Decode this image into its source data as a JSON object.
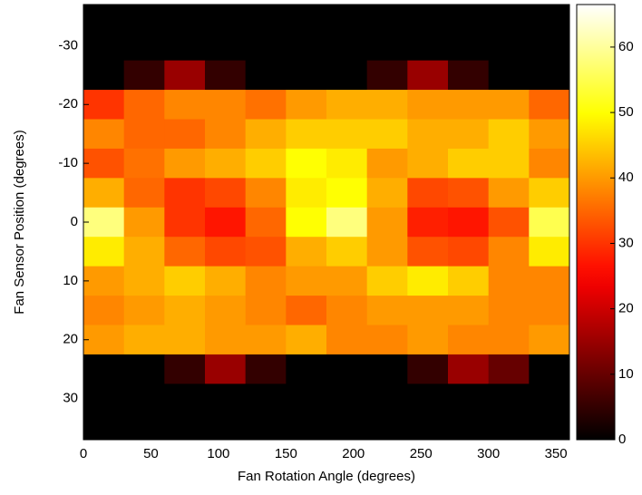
{
  "chart_data": {
    "type": "heatmap",
    "x_label": "Fan Rotation Angle (degrees)",
    "y_label": "Fan Sensor Position (degrees)",
    "x": [
      15,
      45,
      75,
      105,
      135,
      165,
      195,
      225,
      255,
      285,
      315,
      345
    ],
    "y": [
      -35,
      -30,
      -25,
      -20,
      -15,
      -10,
      -5,
      0,
      5,
      10,
      15,
      20,
      25,
      30,
      35
    ],
    "z": [
      [
        0,
        0,
        0,
        0,
        0,
        0,
        0,
        0,
        0,
        0,
        0,
        0
      ],
      [
        0,
        0,
        0,
        0,
        0,
        0,
        0,
        0,
        0,
        0,
        0,
        0
      ],
      [
        0,
        5,
        15,
        5,
        0,
        0,
        0,
        5,
        15,
        5,
        0,
        0
      ],
      [
        30,
        35,
        38,
        38,
        36,
        40,
        42,
        42,
        40,
        40,
        40,
        35
      ],
      [
        38,
        35,
        35,
        38,
        42,
        45,
        45,
        45,
        42,
        42,
        45,
        40
      ],
      [
        33,
        36,
        40,
        42,
        45,
        50,
        48,
        40,
        42,
        45,
        45,
        38
      ],
      [
        42,
        35,
        30,
        32,
        38,
        48,
        50,
        42,
        32,
        33,
        40,
        45
      ],
      [
        58,
        40,
        30,
        27,
        35,
        50,
        58,
        40,
        28,
        27,
        33,
        55
      ],
      [
        48,
        42,
        35,
        32,
        33,
        42,
        45,
        40,
        33,
        32,
        38,
        48
      ],
      [
        40,
        42,
        45,
        42,
        38,
        40,
        40,
        45,
        48,
        45,
        38,
        38
      ],
      [
        38,
        40,
        42,
        40,
        38,
        35,
        38,
        40,
        40,
        40,
        38,
        38
      ],
      [
        40,
        42,
        42,
        40,
        40,
        42,
        38,
        38,
        40,
        38,
        38,
        40
      ],
      [
        0,
        0,
        5,
        15,
        5,
        0,
        0,
        0,
        5,
        15,
        10,
        0
      ],
      [
        0,
        0,
        0,
        0,
        0,
        0,
        0,
        0,
        0,
        0,
        0,
        0
      ],
      [
        0,
        0,
        0,
        0,
        0,
        0,
        0,
        0,
        0,
        0,
        0,
        0
      ]
    ],
    "colormap": "hot",
    "xlim": [
      0,
      360
    ],
    "ylim": [
      -37,
      37
    ],
    "y_reversed": true,
    "xticks": [
      0,
      50,
      100,
      150,
      200,
      250,
      300,
      350
    ],
    "yticks": [
      -30,
      -20,
      -10,
      0,
      10,
      20,
      30
    ],
    "clim": [
      0,
      66.5
    ],
    "cticks": [
      0,
      10,
      20,
      30,
      40,
      50,
      60
    ]
  }
}
